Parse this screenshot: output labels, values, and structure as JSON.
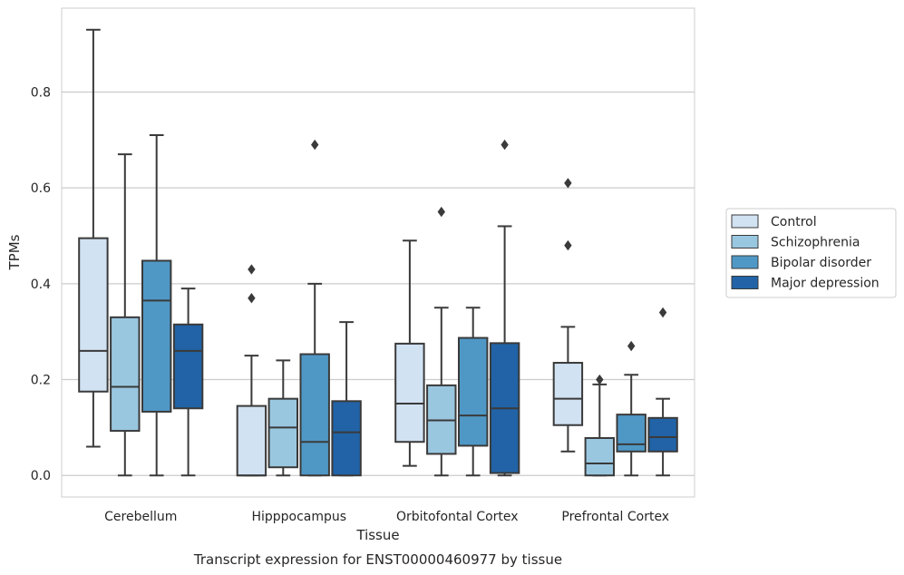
{
  "caption": "Transcript expression for ENST00000460977 by tissue",
  "chart_data": {
    "type": "box",
    "xlabel": "Tissue",
    "ylabel": "TPMs",
    "ylim": [
      -0.045,
      0.975
    ],
    "yticks": [
      "0.0",
      "0.2",
      "0.4",
      "0.6",
      "0.8"
    ],
    "ytick_values": [
      0.0,
      0.2,
      0.4,
      0.6,
      0.8
    ],
    "grid": true,
    "legend_position": "right",
    "categories": [
      "Cerebellum",
      "Hipppocampus",
      "Orbitofontal Cortex",
      "Prefrontal Cortex"
    ],
    "series": [
      {
        "name": "Control",
        "color": "#d1e2f2",
        "boxes": [
          {
            "whislo": 0.06,
            "q1": 0.175,
            "med": 0.26,
            "q3": 0.495,
            "whishi": 0.93,
            "fliers": []
          },
          {
            "whislo": 0.0,
            "q1": 0.0,
            "med": 0.0,
            "q3": 0.145,
            "whishi": 0.25,
            "fliers": [
              0.37,
              0.43
            ]
          },
          {
            "whislo": 0.02,
            "q1": 0.07,
            "med": 0.15,
            "q3": 0.275,
            "whishi": 0.49,
            "fliers": []
          },
          {
            "whislo": 0.05,
            "q1": 0.105,
            "med": 0.16,
            "q3": 0.235,
            "whishi": 0.31,
            "fliers": [
              0.48,
              0.61
            ]
          }
        ]
      },
      {
        "name": "Schizophrenia",
        "color": "#9ac7e0",
        "boxes": [
          {
            "whislo": 0.0,
            "q1": 0.093,
            "med": 0.185,
            "q3": 0.33,
            "whishi": 0.67,
            "fliers": []
          },
          {
            "whislo": 0.0,
            "q1": 0.017,
            "med": 0.1,
            "q3": 0.16,
            "whishi": 0.24,
            "fliers": []
          },
          {
            "whislo": 0.0,
            "q1": 0.045,
            "med": 0.115,
            "q3": 0.188,
            "whishi": 0.35,
            "fliers": [
              0.55
            ]
          },
          {
            "whislo": 0.0,
            "q1": 0.0,
            "med": 0.025,
            "q3": 0.078,
            "whishi": 0.19,
            "fliers": [
              0.2
            ]
          }
        ]
      },
      {
        "name": "Bipolar disorder",
        "color": "#4f98c6",
        "boxes": [
          {
            "whislo": 0.0,
            "q1": 0.133,
            "med": 0.365,
            "q3": 0.448,
            "whishi": 0.71,
            "fliers": []
          },
          {
            "whislo": 0.0,
            "q1": 0.0,
            "med": 0.07,
            "q3": 0.253,
            "whishi": 0.4,
            "fliers": [
              0.69
            ]
          },
          {
            "whislo": 0.0,
            "q1": 0.062,
            "med": 0.125,
            "q3": 0.287,
            "whishi": 0.35,
            "fliers": []
          },
          {
            "whislo": 0.0,
            "q1": 0.05,
            "med": 0.065,
            "q3": 0.127,
            "whishi": 0.21,
            "fliers": [
              0.27
            ]
          }
        ]
      },
      {
        "name": "Major depression",
        "color": "#2163a6",
        "boxes": [
          {
            "whislo": 0.0,
            "q1": 0.14,
            "med": 0.26,
            "q3": 0.315,
            "whishi": 0.39,
            "fliers": []
          },
          {
            "whislo": 0.0,
            "q1": 0.0,
            "med": 0.09,
            "q3": 0.155,
            "whishi": 0.32,
            "fliers": []
          },
          {
            "whislo": 0.0,
            "q1": 0.005,
            "med": 0.14,
            "q3": 0.276,
            "whishi": 0.52,
            "fliers": [
              0.69
            ]
          },
          {
            "whislo": 0.0,
            "q1": 0.05,
            "med": 0.08,
            "q3": 0.12,
            "whishi": 0.16,
            "fliers": [
              0.34
            ]
          }
        ]
      }
    ]
  },
  "colors": {
    "line": "#3a3a3a",
    "grid": "#cccccc",
    "frame": "#cccccc"
  }
}
